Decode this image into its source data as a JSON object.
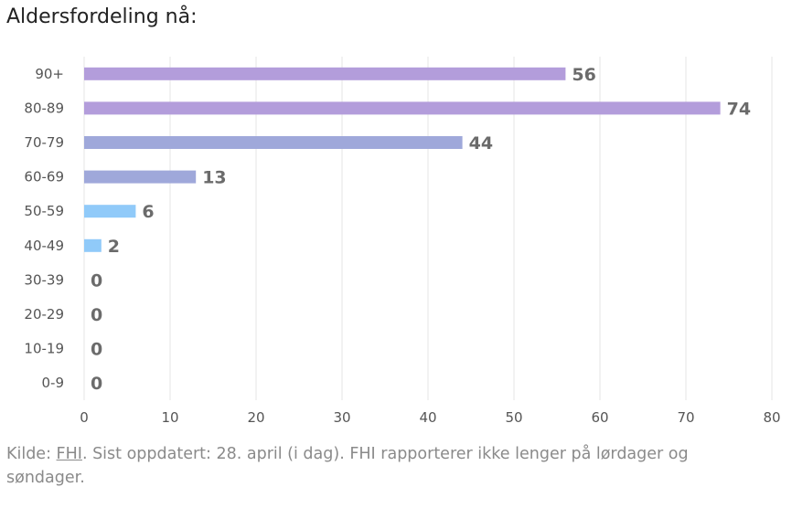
{
  "title": "Aldersfordeling nå:",
  "footer": {
    "prefix": "Kilde: ",
    "source_link": "FHI",
    "text": ". Sist oppdatert: 28. april (i dag). FHI rapporterer ikke lenger på lørdager og søndager."
  },
  "colors": {
    "purple": "#b39ddb",
    "indigo": "#9fa8da",
    "blue": "#90caf9",
    "grid": "#e6e6e6"
  },
  "chart_data": {
    "type": "bar",
    "orientation": "horizontal",
    "categories": [
      "90+",
      "80-89",
      "70-79",
      "60-69",
      "50-59",
      "40-49",
      "30-39",
      "20-29",
      "10-19",
      "0-9"
    ],
    "values": [
      56,
      74,
      44,
      13,
      6,
      2,
      0,
      0,
      0,
      0
    ],
    "bar_colors": [
      "#b39ddb",
      "#b39ddb",
      "#9fa8da",
      "#9fa8da",
      "#90caf9",
      "#90caf9",
      "#90caf9",
      "#90caf9",
      "#90caf9",
      "#90caf9"
    ],
    "xlim": [
      0,
      80
    ],
    "xticks": [
      0,
      10,
      20,
      30,
      40,
      50,
      60,
      70,
      80
    ],
    "grid": true,
    "data_labels": true
  }
}
